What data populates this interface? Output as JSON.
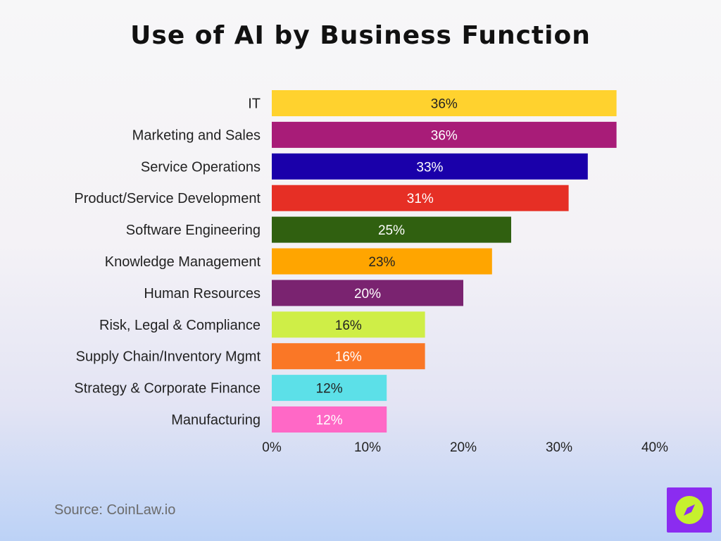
{
  "source": "Source: CoinLaw.io",
  "logo": {
    "icon": "compass-icon",
    "bg": "#8b2cf0",
    "fg": "#c6f02e"
  },
  "chart_data": {
    "type": "bar",
    "orientation": "horizontal",
    "title": "Use of AI by Business Function",
    "categories": [
      "IT",
      "Marketing and Sales",
      "Service Operations",
      "Product/Service Development",
      "Software Engineering",
      "Knowledge Management",
      "Human Resources",
      "Risk, Legal & Compliance",
      "Supply Chain/Inventory Mgmt",
      "Strategy & Corporate Finance",
      "Manufacturing"
    ],
    "values": [
      36,
      36,
      33,
      31,
      25,
      23,
      20,
      16,
      16,
      12,
      12
    ],
    "data_labels": [
      "36%",
      "36%",
      "33%",
      "31%",
      "25%",
      "23%",
      "20%",
      "16%",
      "16%",
      "12%",
      "12%"
    ],
    "colors": [
      "#ffd22e",
      "#a81c78",
      "#1a00aa",
      "#e62f25",
      "#306010",
      "#ffa500",
      "#7a2370",
      "#cfee47",
      "#fa7726",
      "#5ce0e8",
      "#ff68c6"
    ],
    "label_colors": [
      "#222222",
      "#ffffff",
      "#ffffff",
      "#ffffff",
      "#ffffff",
      "#222222",
      "#ffffff",
      "#222222",
      "#ffffff",
      "#222222",
      "#ffffff"
    ],
    "xlim": [
      0,
      40
    ],
    "xticks": [
      "0%",
      "10%",
      "20%",
      "30%",
      "40%"
    ],
    "xtick_values": [
      0,
      10,
      20,
      30,
      40
    ],
    "grid": false,
    "legend": "none"
  }
}
